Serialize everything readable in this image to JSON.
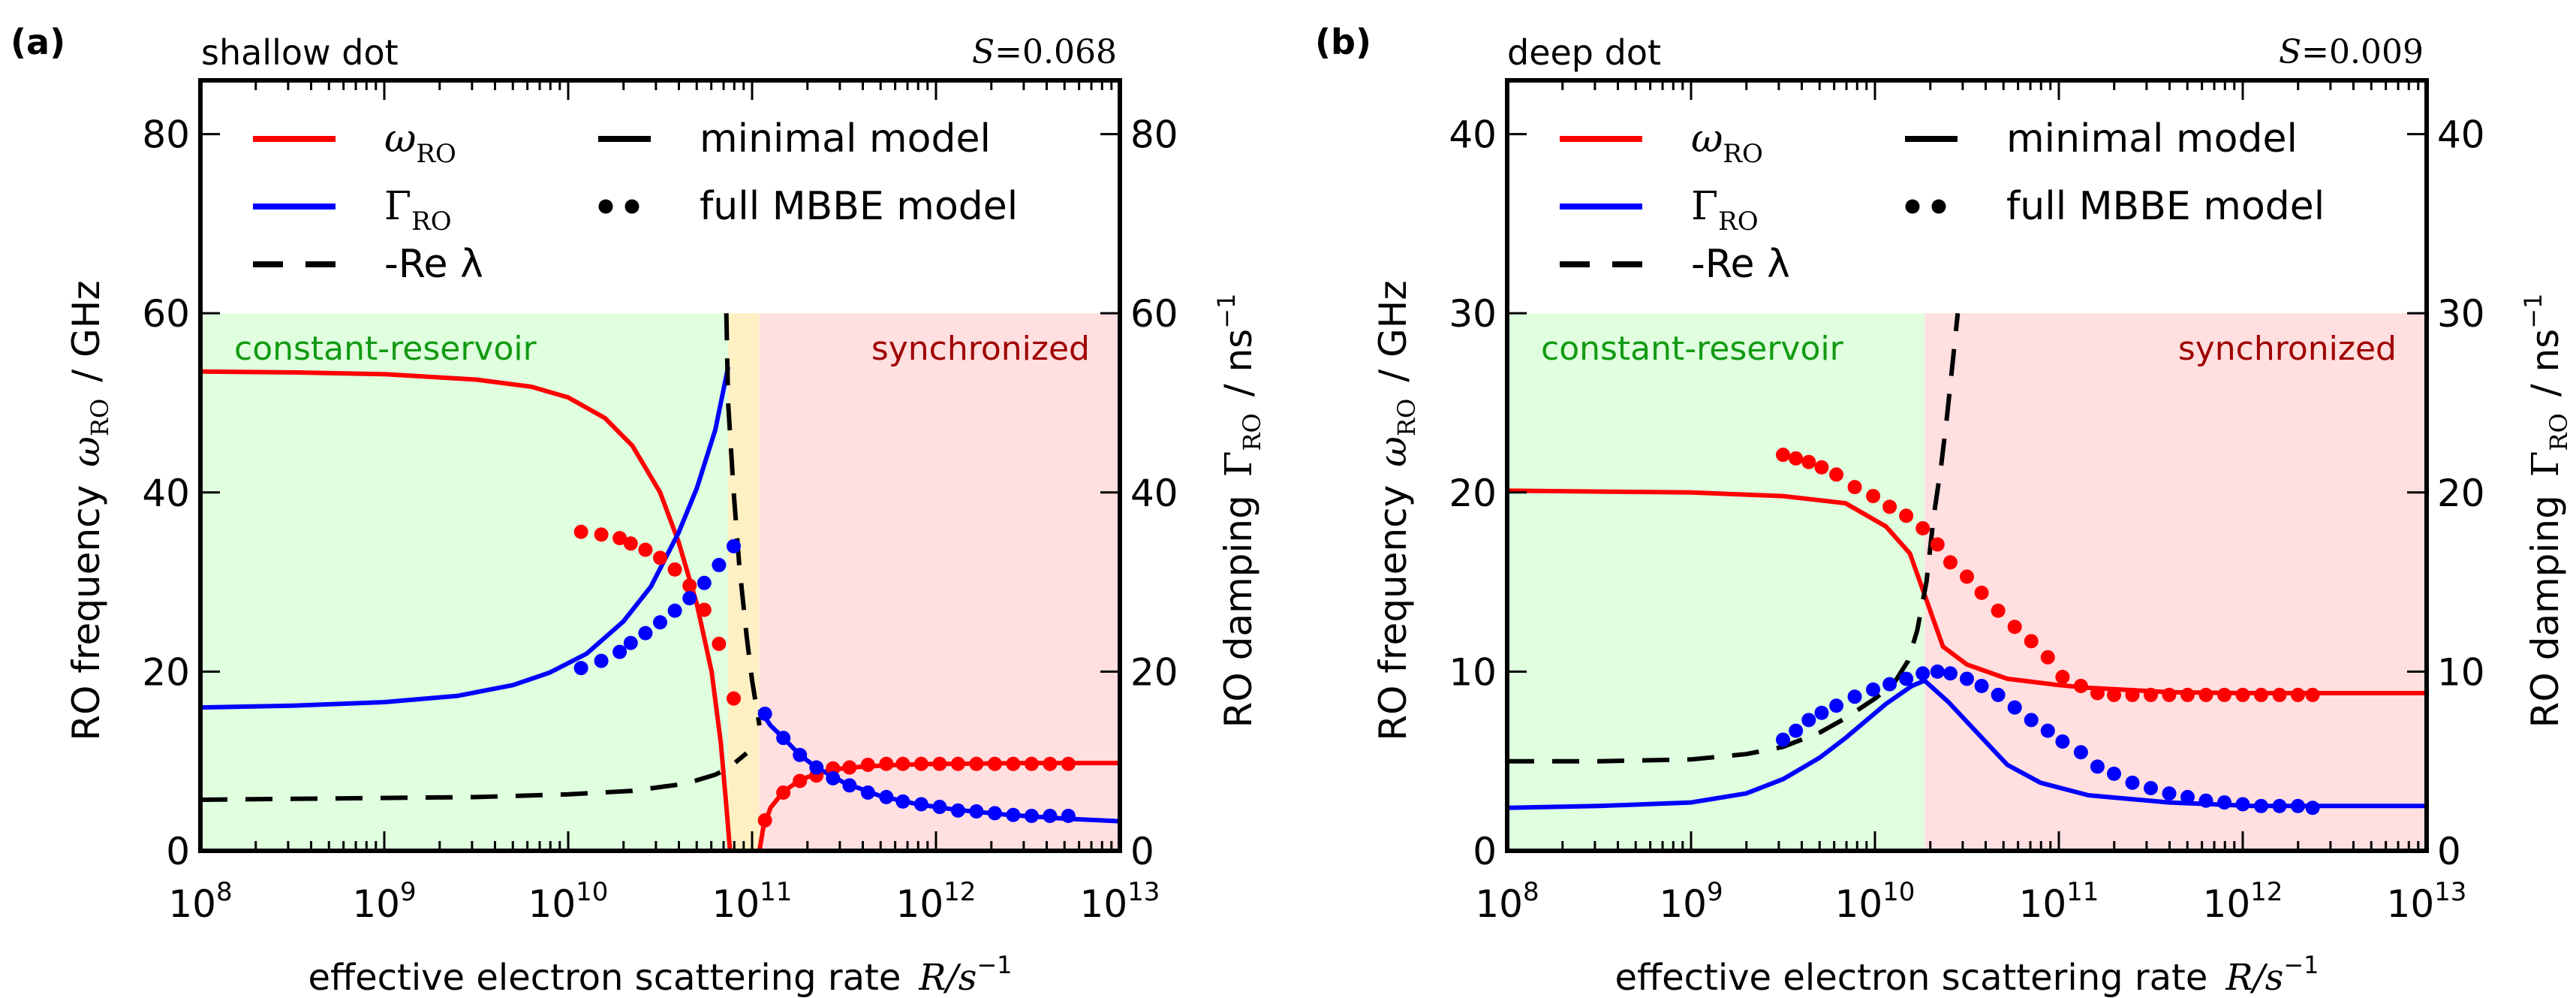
{
  "figure": {
    "panels_count": 2
  },
  "chart_data": [
    {
      "type": "line",
      "panel_label": "(a)",
      "title": "shallow dot",
      "annotation_right": "S = 0.068",
      "annotation_S_symbol": "S",
      "annotation_S_value": "=0.068",
      "xlabel": "effective electron scattering rate",
      "xlabel_math": "R/s",
      "xlabel_exp": "−1",
      "ylabel_left_prefix": "RO frequency",
      "ylabel_left_symbol": "ω",
      "ylabel_left_sub": "RO",
      "ylabel_left_unit": "/  GHz",
      "ylabel_right_prefix": "RO damping",
      "ylabel_right_symbol": "Γ",
      "ylabel_right_sub": "RO",
      "ylabel_right_unit": "/  ns",
      "ylabel_right_exp": "−1",
      "xscale": "log",
      "xlim_log10": [
        8,
        13
      ],
      "ylim": [
        0,
        86
      ],
      "y2lim": [
        0,
        86
      ],
      "xticks": [
        {
          "base": "10",
          "exp": "8"
        },
        {
          "base": "10",
          "exp": "9"
        },
        {
          "base": "10",
          "exp": "10"
        },
        {
          "base": "10",
          "exp": "11"
        },
        {
          "base": "10",
          "exp": "12"
        },
        {
          "base": "10",
          "exp": "13"
        }
      ],
      "yticks": [
        "0",
        "20",
        "40",
        "60",
        "80"
      ],
      "ytick_values": [
        0,
        20,
        40,
        60,
        80
      ],
      "y2ticks": [
        "0",
        "20",
        "40",
        "60",
        "80"
      ],
      "regions": [
        {
          "name": "constant-reservoir",
          "label": "constant-reservoir",
          "x_log10": [
            8,
            10.87
          ],
          "ymax": 60,
          "color": "#dfffdf",
          "text_color": "#119a11"
        },
        {
          "name": "transition",
          "label": "",
          "x_log10": [
            10.87,
            11.04
          ],
          "ymax": 60,
          "color": "#fff0c3",
          "text_color": ""
        },
        {
          "name": "synchronized",
          "label": "synchronized",
          "x_log10": [
            11.04,
            13
          ],
          "ymax": 60,
          "color": "#ffdfdf",
          "text_color": "#a00000"
        }
      ],
      "legend": {
        "placement": "top-left",
        "entries": [
          {
            "label_symbol": "ω",
            "label_sub": "RO",
            "style": "solid",
            "color": "#ff0000"
          },
          {
            "label_symbol": "Γ",
            "label_sub": "RO",
            "style": "solid",
            "color": "#0000ff"
          },
          {
            "label": "-Re λ",
            "style": "dashed",
            "color": "#000000"
          },
          {
            "label": "minimal model",
            "style": "solid",
            "color": "#000000"
          },
          {
            "label": "full MBBE model",
            "style": "dots",
            "color": "#000000"
          }
        ]
      },
      "series": [
        {
          "name": "omega_RO minimal model",
          "color": "#ff0000",
          "style": "solid",
          "segments": [
            {
              "x_log10": [
                8,
                8.5,
                9,
                9.5,
                9.8,
                10.0,
                10.2,
                10.35,
                10.5,
                10.6,
                10.7,
                10.78,
                10.83,
                10.86,
                10.88
              ],
              "y": [
                53.5,
                53.4,
                53.2,
                52.6,
                51.8,
                50.6,
                48.3,
                45.2,
                40.0,
                34.5,
                27.5,
                20.0,
                12.0,
                5.0,
                0
              ]
            },
            {
              "x_log10": [
                11.04,
                11.06,
                11.1,
                11.17,
                11.26,
                11.35,
                11.45,
                11.6,
                11.8,
                12.0,
                12.5,
                13.0
              ],
              "y": [
                0,
                2.5,
                4.8,
                6.6,
                7.9,
                8.6,
                9.1,
                9.4,
                9.6,
                9.7,
                9.8,
                9.8
              ]
            }
          ]
        },
        {
          "name": "Gamma_RO minimal model",
          "color": "#0000ff",
          "style": "solid",
          "segments": [
            {
              "x_log10": [
                8,
                8.5,
                9,
                9.4,
                9.7,
                9.9,
                10.1,
                10.3,
                10.45,
                10.6,
                10.7,
                10.8,
                10.87
              ],
              "y": [
                16.0,
                16.2,
                16.6,
                17.3,
                18.5,
                19.9,
                22.0,
                25.6,
                29.5,
                35.5,
                40.5,
                47.0,
                54.0
              ]
            },
            {
              "x_log10": [
                11.04,
                11.1,
                11.17,
                11.26,
                11.35,
                11.5,
                11.7,
                11.9,
                12.1,
                12.4,
                12.7,
                13.0
              ],
              "y": [
                15.8,
                14.0,
                12.6,
                10.7,
                9.3,
                7.6,
                6.1,
                5.2,
                4.6,
                4.0,
                3.6,
                3.3
              ]
            }
          ]
        },
        {
          "name": "-Re lambda minimal model",
          "color": "#000000",
          "style": "dashed",
          "segments": [
            {
              "x_log10": [
                8,
                8.5,
                9,
                9.5,
                10.0,
                10.35,
                10.64,
                10.8,
                10.87,
                10.97
              ],
              "y": [
                5.7,
                5.8,
                5.9,
                6.0,
                6.3,
                6.7,
                7.5,
                8.5,
                9.2,
                10.9
              ]
            },
            {
              "x_log10": [
                10.86,
                10.87,
                10.9,
                10.93,
                10.97,
                11.0,
                11.04
              ],
              "y": [
                60,
                50,
                40,
                32,
                24,
                19,
                14
              ]
            }
          ]
        },
        {
          "name": "omega_RO full MBBE model",
          "color": "#ff0000",
          "style": "dots",
          "x_log10": [
            10.07,
            10.18,
            10.28,
            10.34,
            10.42,
            10.5,
            10.58,
            10.66,
            10.74,
            10.82,
            10.9,
            11.07,
            11.17,
            11.26,
            11.35,
            11.44,
            11.53,
            11.63,
            11.73,
            11.82,
            11.92,
            12.02,
            12.12,
            12.22,
            12.32,
            12.42,
            12.52,
            12.62,
            12.72
          ],
          "y": [
            35.6,
            35.3,
            34.9,
            34.3,
            33.6,
            32.7,
            31.4,
            29.6,
            26.9,
            23.1,
            17.0,
            3.4,
            6.5,
            7.8,
            8.4,
            9.2,
            9.3,
            9.6,
            9.7,
            9.7,
            9.7,
            9.7,
            9.7,
            9.7,
            9.7,
            9.7,
            9.7,
            9.7,
            9.7
          ]
        },
        {
          "name": "Gamma_RO full MBBE model",
          "color": "#0000ff",
          "style": "dots",
          "x_log10": [
            10.07,
            10.18,
            10.28,
            10.34,
            10.42,
            10.5,
            10.58,
            10.66,
            10.74,
            10.82,
            10.9,
            11.07,
            11.17,
            11.26,
            11.35,
            11.44,
            11.53,
            11.63,
            11.73,
            11.82,
            11.92,
            12.02,
            12.12,
            12.22,
            12.32,
            12.42,
            12.52,
            12.62,
            12.72
          ],
          "y": [
            20.4,
            21.2,
            22.2,
            23.2,
            24.3,
            25.5,
            26.8,
            28.2,
            29.9,
            31.9,
            34.0,
            15.3,
            12.6,
            10.7,
            9.3,
            8.1,
            7.3,
            6.5,
            6.0,
            5.5,
            5.2,
            4.9,
            4.5,
            4.4,
            4.2,
            4.0,
            3.9,
            3.9,
            3.9
          ]
        }
      ]
    },
    {
      "type": "line",
      "panel_label": "(b)",
      "title": "deep dot",
      "annotation_right": "S = 0.009",
      "annotation_S_symbol": "S",
      "annotation_S_value": "=0.009",
      "xlabel": "effective electron scattering rate",
      "xlabel_math": "R/s",
      "xlabel_exp": "−1",
      "ylabel_left_prefix": "RO frequency",
      "ylabel_left_symbol": "ω",
      "ylabel_left_sub": "RO",
      "ylabel_left_unit": "/  GHz",
      "ylabel_right_prefix": "RO damping",
      "ylabel_right_symbol": "Γ",
      "ylabel_right_sub": "RO",
      "ylabel_right_unit": "/  ns",
      "ylabel_right_exp": "−1",
      "xscale": "log",
      "xlim_log10": [
        8,
        13
      ],
      "ylim": [
        0,
        43
      ],
      "y2lim": [
        0,
        43
      ],
      "xticks": [
        {
          "base": "10",
          "exp": "8"
        },
        {
          "base": "10",
          "exp": "9"
        },
        {
          "base": "10",
          "exp": "10"
        },
        {
          "base": "10",
          "exp": "11"
        },
        {
          "base": "10",
          "exp": "12"
        },
        {
          "base": "10",
          "exp": "13"
        }
      ],
      "yticks": [
        "0",
        "10",
        "20",
        "30",
        "40"
      ],
      "ytick_values": [
        0,
        10,
        20,
        30,
        40
      ],
      "y2ticks": [
        "0",
        "10",
        "20",
        "30",
        "40"
      ],
      "regions": [
        {
          "name": "constant-reservoir",
          "label": "constant-reservoir",
          "x_log10": [
            8,
            10.27
          ],
          "ymax": 30,
          "color": "#dfffdf",
          "text_color": "#119a11"
        },
        {
          "name": "synchronized",
          "label": "synchronized",
          "x_log10": [
            10.27,
            13
          ],
          "ymax": 30,
          "color": "#ffdfdf",
          "text_color": "#a00000"
        }
      ],
      "legend": {
        "placement": "top-left",
        "entries": [
          {
            "label_symbol": "ω",
            "label_sub": "RO",
            "style": "solid",
            "color": "#ff0000"
          },
          {
            "label_symbol": "Γ",
            "label_sub": "RO",
            "style": "solid",
            "color": "#0000ff"
          },
          {
            "label": "-Re λ",
            "style": "dashed",
            "color": "#000000"
          },
          {
            "label": "minimal model",
            "style": "solid",
            "color": "#000000"
          },
          {
            "label": "full MBBE model",
            "style": "dots",
            "color": "#000000"
          }
        ]
      },
      "series": [
        {
          "name": "omega_RO minimal model",
          "color": "#ff0000",
          "style": "solid",
          "segments": [
            {
              "x_log10": [
                8,
                8.5,
                9,
                9.5,
                9.84,
                10.06,
                10.19,
                10.28,
                10.37,
                10.5,
                10.72,
                11.0,
                11.16,
                11.6,
                12.0,
                13.0
              ],
              "y": [
                20.1,
                20.05,
                20.0,
                19.8,
                19.4,
                18.1,
                16.6,
                14.0,
                11.4,
                10.4,
                9.6,
                9.25,
                9.1,
                8.85,
                8.8,
                8.8
              ]
            }
          ]
        },
        {
          "name": "Gamma_RO minimal model",
          "color": "#0000ff",
          "style": "solid",
          "segments": [
            {
              "x_log10": [
                8,
                8.5,
                9,
                9.3,
                9.5,
                9.7,
                9.84,
                10.06,
                10.2,
                10.27,
                10.4,
                10.5,
                10.72,
                10.9,
                11.16,
                11.6,
                12.05,
                13.0
              ],
              "y": [
                2.4,
                2.5,
                2.7,
                3.2,
                4.0,
                5.2,
                6.3,
                8.2,
                9.2,
                9.5,
                8.3,
                7.2,
                4.8,
                3.8,
                3.1,
                2.7,
                2.5,
                2.5
              ]
            }
          ]
        },
        {
          "name": "-Re lambda minimal model",
          "color": "#000000",
          "style": "dashed",
          "segments": [
            {
              "x_log10": [
                8,
                8.5,
                9,
                9.3,
                9.5,
                9.7,
                9.84,
                10.0,
                10.1,
                10.18,
                10.23,
                10.28,
                10.32,
                10.36,
                10.39,
                10.42,
                10.45
              ],
              "y": [
                5.0,
                5.0,
                5.1,
                5.4,
                5.8,
                6.6,
                7.4,
                8.5,
                9.3,
                10.6,
                12.3,
                15.0,
                18.7,
                21.5,
                24.1,
                27.0,
                30.0
              ]
            }
          ]
        },
        {
          "name": "omega_RO full MBBE model",
          "color": "#ff0000",
          "style": "dots",
          "x_log10": [
            9.5,
            9.57,
            9.64,
            9.71,
            9.79,
            9.89,
            9.99,
            10.08,
            10.17,
            10.26,
            10.34,
            10.41,
            10.5,
            10.58,
            10.67,
            10.76,
            10.85,
            10.94,
            11.02,
            11.12,
            11.21,
            11.3,
            11.4,
            11.5,
            11.6,
            11.7,
            11.8,
            11.9,
            12.0,
            12.1,
            12.2,
            12.3,
            12.38
          ],
          "y": [
            22.1,
            21.9,
            21.7,
            21.4,
            21.0,
            20.3,
            19.8,
            19.2,
            18.7,
            18.0,
            17.1,
            16.1,
            15.3,
            14.4,
            13.4,
            12.5,
            11.7,
            10.8,
            9.7,
            9.2,
            8.8,
            8.7,
            8.7,
            8.7,
            8.7,
            8.7,
            8.7,
            8.7,
            8.7,
            8.7,
            8.7,
            8.7,
            8.7
          ]
        },
        {
          "name": "Gamma_RO full MBBE model",
          "color": "#0000ff",
          "style": "dots",
          "x_log10": [
            9.5,
            9.57,
            9.64,
            9.71,
            9.79,
            9.89,
            9.99,
            10.08,
            10.17,
            10.26,
            10.34,
            10.41,
            10.5,
            10.58,
            10.67,
            10.76,
            10.85,
            10.94,
            11.02,
            11.12,
            11.21,
            11.3,
            11.4,
            11.5,
            11.6,
            11.7,
            11.8,
            11.9,
            12.0,
            12.1,
            12.2,
            12.3,
            12.38
          ],
          "y": [
            6.2,
            6.7,
            7.3,
            7.7,
            8.1,
            8.6,
            9.0,
            9.3,
            9.6,
            9.9,
            10.0,
            9.9,
            9.6,
            9.2,
            8.7,
            8.0,
            7.3,
            6.7,
            6.1,
            5.5,
            4.7,
            4.3,
            3.8,
            3.5,
            3.2,
            3.0,
            2.8,
            2.7,
            2.6,
            2.5,
            2.5,
            2.5,
            2.4
          ]
        }
      ]
    }
  ]
}
